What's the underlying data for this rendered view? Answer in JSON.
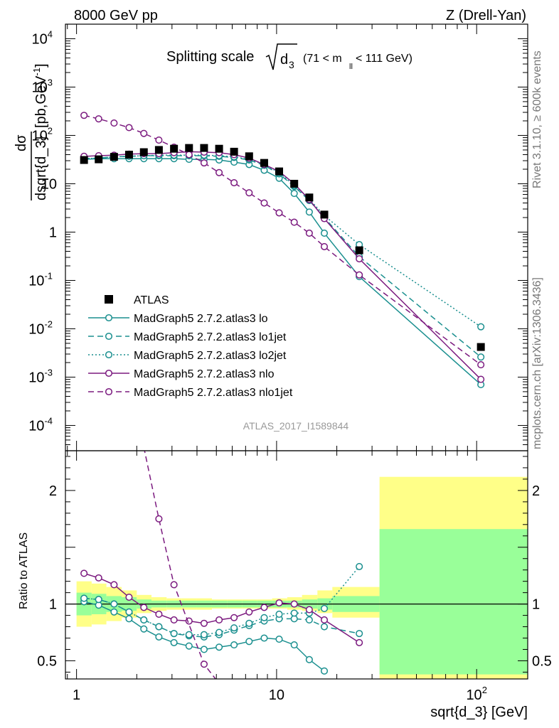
{
  "header": {
    "energy": "8000 GeV pp",
    "process": "Z (Drell-Yan)"
  },
  "side": {
    "rivet": "Rivet 3.1.10, ≥ 600k events",
    "mcplots": "mcplots.cern.ch [arXiv:1306.3436]"
  },
  "watermark": "ATLAS_2017_I1589844",
  "colors": {
    "data": "#000000",
    "teal": "#1a8f8f",
    "purple": "#7b1a7f",
    "band_stat": "#99ff99",
    "band_total": "#ffff88"
  },
  "chart_data": [
    {
      "type": "line",
      "title_main": "Splitting scale",
      "title_sqrt": "d",
      "title_sub": "3",
      "title_cut_pre": "(71 < m",
      "title_cut_sub": "ll",
      "title_cut_post": " < 111 GeV)",
      "ylabel_num": "dσ",
      "ylabel_den": "dsqrt{d_3}",
      "ylabel_unit": "[pb,GeV",
      "ylabel_unit_sup": "-1",
      "ylabel_unit_end": "]",
      "xscale": "log",
      "yscale": "log",
      "xlim": [
        0.88,
        180
      ],
      "ylim": [
        3e-05,
        20000
      ],
      "yticks": [
        {
          "v": 0.0001,
          "m": "10",
          "e": "-4"
        },
        {
          "v": 0.001,
          "m": "10",
          "e": "-3"
        },
        {
          "v": 0.01,
          "m": "10",
          "e": "-2"
        },
        {
          "v": 0.1,
          "m": "10",
          "e": "-1"
        },
        {
          "v": 1,
          "m": "1",
          "e": ""
        },
        {
          "v": 10,
          "m": "10",
          "e": ""
        },
        {
          "v": 100,
          "m": "10",
          "e": "2"
        },
        {
          "v": 1000,
          "m": "10",
          "e": "3"
        },
        {
          "v": 10000,
          "m": "10",
          "e": "4"
        }
      ],
      "legend_position": "middle-left",
      "series": [
        {
          "name": "ATLAS",
          "kind": "data",
          "color": "#000000",
          "x": [
            1.09,
            1.29,
            1.54,
            1.83,
            2.17,
            2.58,
            3.07,
            3.65,
            4.34,
            5.16,
            6.13,
            7.29,
            8.67,
            10.3,
            12.25,
            14.57,
            17.32,
            25.9,
            105.0
          ],
          "y": [
            31,
            32,
            36,
            40,
            45,
            50,
            53,
            55,
            55,
            53,
            46,
            37,
            27,
            18,
            10,
            5.2,
            2.3,
            0.42,
            0.0042
          ]
        },
        {
          "name": "MadGraph5 2.7.2.atlas3 lo",
          "kind": "mc",
          "color": "#1a8f8f",
          "dash": "",
          "x": [
            1.09,
            1.29,
            1.54,
            1.83,
            2.17,
            2.58,
            3.07,
            3.65,
            4.34,
            5.16,
            6.13,
            7.29,
            8.67,
            10.3,
            12.25,
            14.57,
            17.32,
            25.9,
            105.0
          ],
          "y": [
            32,
            33,
            33,
            33,
            33,
            33,
            33,
            32,
            32,
            31,
            28,
            25,
            19,
            13,
            6.3,
            2.6,
            0.95,
            0.12,
            0.0007
          ]
        },
        {
          "name": "MadGraph5 2.7.2.atlas3 lo1jet",
          "kind": "mc",
          "color": "#1a8f8f",
          "dash": "8,5",
          "x": [
            1.09,
            1.29,
            1.54,
            1.83,
            2.17,
            2.58,
            3.07,
            3.65,
            4.34,
            5.16,
            6.13,
            7.29,
            8.67,
            10.3,
            12.25,
            14.57,
            17.32,
            25.9,
            105.0
          ],
          "y": [
            33,
            34,
            36,
            37,
            38,
            38,
            38,
            38,
            38,
            37,
            35,
            31,
            24,
            16,
            8.8,
            4.5,
            2.0,
            0.31,
            0.0026
          ]
        },
        {
          "name": "MadGraph5 2.7.2.atlas3 lo2jet",
          "kind": "mc",
          "color": "#1a8f8f",
          "dash": "2,3",
          "x": [
            1.09,
            1.29,
            1.54,
            1.83,
            2.17,
            2.58,
            3.07,
            3.65,
            4.34,
            5.16,
            6.13,
            7.29,
            8.67,
            10.3,
            12.25,
            14.57,
            17.32,
            25.9,
            105.0
          ],
          "y": [
            33,
            34,
            36,
            37,
            38,
            39,
            39,
            39,
            39,
            38,
            36,
            32,
            25,
            17,
            9.2,
            4.8,
            2.2,
            0.55,
            0.011
          ]
        },
        {
          "name": "MadGraph5 2.7.2.atlas3 nlo",
          "kind": "mc",
          "color": "#7b1a7f",
          "dash": "",
          "x": [
            1.09,
            1.29,
            1.54,
            1.83,
            2.17,
            2.58,
            3.07,
            3.65,
            4.34,
            5.16,
            6.13,
            7.29,
            8.67,
            10.3,
            12.25,
            14.57,
            17.32,
            25.9,
            105.0
          ],
          "y": [
            37,
            38,
            39,
            41,
            42,
            42,
            44,
            46,
            45,
            44,
            40,
            34,
            25,
            18,
            10,
            4.7,
            1.9,
            0.28,
            0.0009
          ]
        },
        {
          "name": "MadGraph5 2.7.2.atlas3 nlo1jet",
          "kind": "mc",
          "color": "#7b1a7f",
          "dash": "8,5",
          "x": [
            1.09,
            1.29,
            1.54,
            1.83,
            2.17,
            2.58,
            3.07,
            3.65,
            4.34,
            5.16,
            6.13,
            7.29,
            8.67,
            10.3,
            12.25,
            14.57,
            17.32,
            25.9,
            105.0
          ],
          "y": [
            260,
            220,
            180,
            145,
            110,
            80,
            57,
            40,
            27,
            17,
            10.5,
            6.5,
            4.0,
            2.5,
            1.6,
            0.95,
            0.5,
            0.13,
            0.0018
          ]
        }
      ]
    },
    {
      "type": "line",
      "ylabel": "Ratio to ATLAS",
      "xlabel": "sqrt{d_3} [GeV]",
      "xscale": "log",
      "xlim": [
        0.88,
        180
      ],
      "ylim": [
        0.34,
        2.35
      ],
      "yticks": [
        {
          "v": 0.5,
          "label": "0.5"
        },
        {
          "v": 1,
          "label": "1"
        },
        {
          "v": 2,
          "label": "2"
        }
      ],
      "xticks": [
        {
          "v": 1,
          "m": "1",
          "e": ""
        },
        {
          "v": 10,
          "m": "10",
          "e": ""
        },
        {
          "v": 100,
          "m": "10",
          "e": "2"
        }
      ],
      "bands": {
        "edges": [
          1.0,
          1.19,
          1.41,
          1.68,
          2.0,
          2.37,
          2.82,
          3.36,
          4.0,
          4.75,
          5.65,
          6.72,
          8.0,
          9.5,
          11.3,
          13.4,
          16.0,
          19.0,
          32.7,
          180
        ],
        "total_lo": [
          0.8,
          0.82,
          0.85,
          0.88,
          0.92,
          0.94,
          0.95,
          0.95,
          0.95,
          0.96,
          0.96,
          0.96,
          0.96,
          0.96,
          0.95,
          0.94,
          0.92,
          0.88,
          0.34
        ],
        "total_hi": [
          1.2,
          1.18,
          1.15,
          1.12,
          1.08,
          1.06,
          1.05,
          1.05,
          1.05,
          1.04,
          1.04,
          1.04,
          1.04,
          1.05,
          1.06,
          1.08,
          1.12,
          1.15,
          2.12
        ],
        "stat_lo": [
          0.9,
          0.91,
          0.93,
          0.94,
          0.96,
          0.97,
          0.97,
          0.97,
          0.97,
          0.97,
          0.97,
          0.97,
          0.97,
          0.97,
          0.97,
          0.96,
          0.95,
          0.93,
          0.38
        ],
        "stat_hi": [
          1.1,
          1.09,
          1.07,
          1.06,
          1.04,
          1.03,
          1.03,
          1.03,
          1.03,
          1.03,
          1.03,
          1.03,
          1.03,
          1.03,
          1.03,
          1.04,
          1.05,
          1.07,
          1.66
        ]
      },
      "series": [
        {
          "name": "MadGraph5 2.7.2.atlas3 lo",
          "color": "#1a8f8f",
          "dash": "",
          "x": [
            1.09,
            1.29,
            1.54,
            1.83,
            2.17,
            2.58,
            3.07,
            3.65,
            4.34,
            5.16,
            6.13,
            7.29,
            8.67,
            10.3,
            12.25,
            14.57,
            17.32
          ],
          "y": [
            1.02,
            0.99,
            0.93,
            0.87,
            0.78,
            0.71,
            0.66,
            0.63,
            0.6,
            0.62,
            0.64,
            0.67,
            0.7,
            0.69,
            0.64,
            0.51,
            0.41
          ]
        },
        {
          "name": "MadGraph5 2.7.2.atlas3 lo1jet",
          "color": "#1a8f8f",
          "dash": "8,5",
          "x": [
            1.09,
            1.29,
            1.54,
            1.83,
            2.17,
            2.58,
            3.07,
            3.65,
            4.34,
            5.16,
            6.13,
            7.29,
            8.67,
            10.3,
            12.25,
            14.57,
            17.32,
            25.9
          ],
          "y": [
            1.05,
            1.04,
            1.0,
            0.93,
            0.86,
            0.8,
            0.74,
            0.72,
            0.71,
            0.73,
            0.77,
            0.81,
            0.85,
            0.87,
            0.87,
            0.86,
            0.8,
            0.74
          ]
        },
        {
          "name": "MadGraph5 2.7.2.atlas3 lo2jet",
          "color": "#1a8f8f",
          "dash": "2,3",
          "x": [
            1.09,
            1.29,
            1.54,
            1.83,
            2.17,
            2.58,
            3.07,
            3.65,
            4.34,
            5.16,
            6.13,
            7.29,
            8.67,
            10.3,
            12.25,
            14.57,
            17.32,
            25.9
          ],
          "y": [
            1.05,
            1.04,
            1.0,
            0.93,
            0.86,
            0.8,
            0.74,
            0.73,
            0.73,
            0.75,
            0.79,
            0.83,
            0.88,
            0.91,
            0.92,
            0.92,
            0.96,
            1.33
          ]
        },
        {
          "name": "MadGraph5 2.7.2.atlas3 nlo",
          "color": "#7b1a7f",
          "dash": "",
          "x": [
            1.09,
            1.29,
            1.54,
            1.83,
            2.17,
            2.58,
            3.07,
            3.65,
            4.34,
            5.16,
            6.13,
            7.29,
            8.67,
            10.3,
            12.25,
            14.57,
            17.32,
            25.9
          ],
          "y": [
            1.27,
            1.23,
            1.17,
            1.06,
            0.97,
            0.91,
            0.86,
            0.85,
            0.83,
            0.86,
            0.88,
            0.93,
            0.97,
            1.01,
            1.0,
            0.95,
            0.86,
            0.66
          ]
        },
        {
          "name": "MadGraph5 2.7.2.atlas3 nlo1jet",
          "color": "#7b1a7f",
          "dash": "8,5",
          "x": [
            2.17,
            2.58,
            3.07,
            4.34,
            5.16
          ],
          "y": [
            2.38,
            1.75,
            1.17,
            0.47,
            0.3
          ]
        }
      ]
    }
  ]
}
